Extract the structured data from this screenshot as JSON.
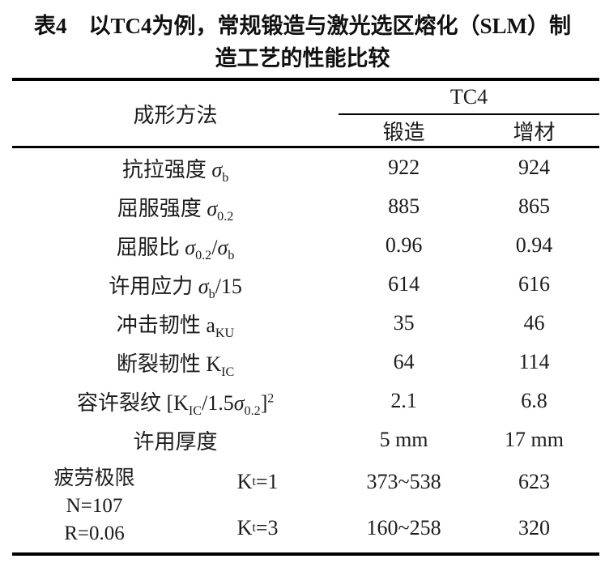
{
  "title": {
    "line1": "表4　以TC4为例，常规锻造与激光选区熔化（SLM）制",
    "line2": "造工艺的性能比较"
  },
  "colors": {
    "text": "#1c1c1c",
    "rule": "#000000",
    "background": "#ffffff"
  },
  "table": {
    "header": {
      "method_label": "成形方法",
      "group_label": "TC4",
      "col_forging": "锻造",
      "col_additive": "增材"
    },
    "rows": [
      {
        "label": [
          {
            "t": "t",
            "v": "抗拉强度 "
          },
          {
            "t": "i",
            "v": "σ"
          },
          {
            "t": "sub",
            "v": "b"
          }
        ],
        "forging": "922",
        "additive": "924"
      },
      {
        "label": [
          {
            "t": "t",
            "v": "屈服强度 "
          },
          {
            "t": "i",
            "v": "σ"
          },
          {
            "t": "sub",
            "v": "0.2"
          }
        ],
        "forging": "885",
        "additive": "865"
      },
      {
        "label": [
          {
            "t": "t",
            "v": "屈服比 "
          },
          {
            "t": "i",
            "v": "σ"
          },
          {
            "t": "sub",
            "v": "0.2"
          },
          {
            "t": "t",
            "v": "/"
          },
          {
            "t": "i",
            "v": "σ"
          },
          {
            "t": "sub",
            "v": "b"
          }
        ],
        "forging": "0.96",
        "additive": "0.94"
      },
      {
        "label": [
          {
            "t": "t",
            "v": "许用应力 "
          },
          {
            "t": "i",
            "v": "σ"
          },
          {
            "t": "sub",
            "v": "b"
          },
          {
            "t": "t",
            "v": "/15"
          }
        ],
        "forging": "614",
        "additive": "616"
      },
      {
        "label": [
          {
            "t": "t",
            "v": "冲击韧性  a"
          },
          {
            "t": "sub",
            "v": "KU"
          }
        ],
        "forging": "35",
        "additive": "46"
      },
      {
        "label": [
          {
            "t": "t",
            "v": "断裂韧性  K"
          },
          {
            "t": "sub",
            "v": "IC"
          }
        ],
        "forging": "64",
        "additive": "114"
      },
      {
        "label": [
          {
            "t": "t",
            "v": "容许裂纹  [K"
          },
          {
            "t": "sub",
            "v": "IC"
          },
          {
            "t": "t",
            "v": "/1.5"
          },
          {
            "t": "i",
            "v": "σ"
          },
          {
            "t": "sub",
            "v": "0.2"
          },
          {
            "t": "t",
            "v": "]"
          },
          {
            "t": "sup",
            "v": "2"
          }
        ],
        "forging": "2.1",
        "additive": "6.8"
      },
      {
        "label": [
          {
            "t": "t",
            "v": "许用厚度"
          }
        ],
        "forging": "5 mm",
        "additive": "17 mm"
      }
    ],
    "fatigue": {
      "label_lines": [
        "疲劳极限",
        "N=107",
        "R=0.06"
      ],
      "sub_rows": [
        {
          "label": [
            {
              "t": "t",
              "v": "K"
            },
            {
              "t": "sub",
              "v": "t"
            },
            {
              "t": "t",
              "v": "=1"
            }
          ],
          "forging": "373~538",
          "additive": "623"
        },
        {
          "label": [
            {
              "t": "t",
              "v": "K"
            },
            {
              "t": "sub",
              "v": "t"
            },
            {
              "t": "t",
              "v": "=3"
            }
          ],
          "forging": "160~258",
          "additive": "320"
        }
      ]
    }
  }
}
